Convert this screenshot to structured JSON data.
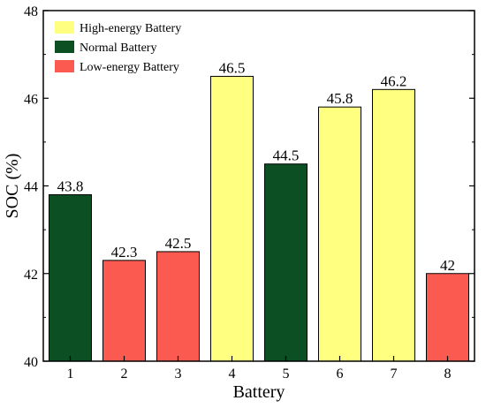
{
  "chart_data": {
    "type": "bar",
    "categories": [
      "1",
      "2",
      "3",
      "4",
      "5",
      "6",
      "7",
      "8"
    ],
    "values": [
      43.8,
      42.3,
      42.5,
      46.5,
      44.5,
      45.8,
      46.2,
      42
    ],
    "value_labels": [
      "43.8",
      "42.3",
      "42.5",
      "46.5",
      "44.5",
      "45.8",
      "46.2",
      "42"
    ],
    "bar_groups": [
      "normal",
      "low",
      "low",
      "high",
      "normal",
      "high",
      "high",
      "low"
    ],
    "series": [
      {
        "key": "high",
        "name": "High-energy Battery",
        "color": "#FFFF80"
      },
      {
        "key": "normal",
        "name": "Normal Battery",
        "color": "#0B4F22"
      },
      {
        "key": "low",
        "name": "Low-energy Battery",
        "color": "#FA5A50"
      }
    ],
    "xlabel": "Battery",
    "ylabel": "SOC (%)",
    "ylim": [
      40,
      48
    ],
    "yticks": [
      "40",
      "42",
      "44",
      "46",
      "48"
    ],
    "legend_position": "top-left",
    "grid": false
  }
}
